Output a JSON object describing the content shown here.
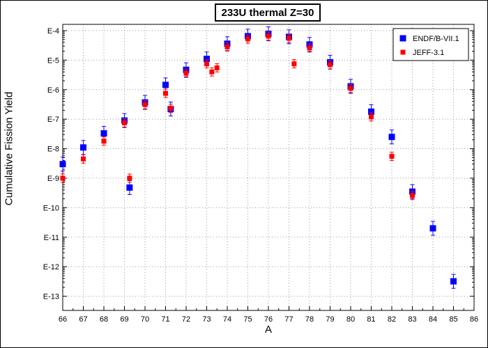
{
  "chart_data": {
    "type": "scatter",
    "title": "233U thermal Z=30",
    "xlabel": "A",
    "ylabel": "Cumulative Fission Yield",
    "xlim": [
      66,
      86
    ],
    "ylim_exponent": [
      -13.5,
      -3.95
    ],
    "y_scale": "log",
    "x_ticks": [
      66,
      67,
      68,
      69,
      70,
      71,
      72,
      73,
      74,
      75,
      76,
      77,
      78,
      79,
      80,
      81,
      82,
      83,
      84,
      85,
      86
    ],
    "y_ticks": [
      "E-4",
      "E-5",
      "E-6",
      "E-7",
      "E-8",
      "E-9",
      "E-10",
      "E-11",
      "E-12",
      "E-13"
    ],
    "grid": true,
    "legend_position": "top-right",
    "series": [
      {
        "name": "ENDF/B-VII.1",
        "color": "#0000ff",
        "marker": "square",
        "points": [
          {
            "x": 66,
            "y": "3e-9"
          },
          {
            "x": 67,
            "y": "1.1e-8"
          },
          {
            "x": 68,
            "y": "3.3e-8"
          },
          {
            "x": 69,
            "y": "9e-8"
          },
          {
            "x": 69.25,
            "y": "4.8e-10"
          },
          {
            "x": 70,
            "y": "3.7e-7"
          },
          {
            "x": 71,
            "y": "1.45e-6"
          },
          {
            "x": 71.25,
            "y": "2.2e-7"
          },
          {
            "x": 72,
            "y": "4.7e-6"
          },
          {
            "x": 73,
            "y": "1.1e-5"
          },
          {
            "x": 74,
            "y": "3.6e-5"
          },
          {
            "x": 75,
            "y": "6.5e-5"
          },
          {
            "x": 76,
            "y": "7.8e-5"
          },
          {
            "x": 77,
            "y": "6.2e-5"
          },
          {
            "x": 78,
            "y": "3.4e-5"
          },
          {
            "x": 79,
            "y": "8.5e-6"
          },
          {
            "x": 80,
            "y": "1.3e-6"
          },
          {
            "x": 81,
            "y": "1.8e-7"
          },
          {
            "x": 82,
            "y": "2.5e-8"
          },
          {
            "x": 83,
            "y": "3.5e-10"
          },
          {
            "x": 84,
            "y": "2e-11"
          },
          {
            "x": 85,
            "y": "3.2e-13"
          }
        ]
      },
      {
        "name": "JEFF-3.1",
        "color": "#ff0000",
        "marker": "square",
        "points": [
          {
            "x": 66,
            "y": "1e-9"
          },
          {
            "x": 67,
            "y": "4.5e-9"
          },
          {
            "x": 68,
            "y": "1.8e-8"
          },
          {
            "x": 69,
            "y": "7.5e-8"
          },
          {
            "x": 69.25,
            "y": "1e-9"
          },
          {
            "x": 70,
            "y": "3.1e-7"
          },
          {
            "x": 71,
            "y": "7.5e-7"
          },
          {
            "x": 71.25,
            "y": "2.3e-7"
          },
          {
            "x": 72,
            "y": "3.6e-6"
          },
          {
            "x": 73,
            "y": "7.5e-6"
          },
          {
            "x": 73.25,
            "y": "4e-6"
          },
          {
            "x": 73.5,
            "y": "5.5e-6"
          },
          {
            "x": 74,
            "y": "2.8e-5"
          },
          {
            "x": 75,
            "y": "5.2e-5"
          },
          {
            "x": 76,
            "y": "6.5e-5"
          },
          {
            "x": 77,
            "y": "5.5e-5"
          },
          {
            "x": 77.25,
            "y": "7.5e-6"
          },
          {
            "x": 78,
            "y": "2.6e-5"
          },
          {
            "x": 79,
            "y": "7e-6"
          },
          {
            "x": 80,
            "y": "1.1e-6"
          },
          {
            "x": 81,
            "y": "1.2e-7"
          },
          {
            "x": 82,
            "y": "5.5e-9"
          },
          {
            "x": 83,
            "y": "2.6e-10"
          }
        ]
      }
    ]
  }
}
